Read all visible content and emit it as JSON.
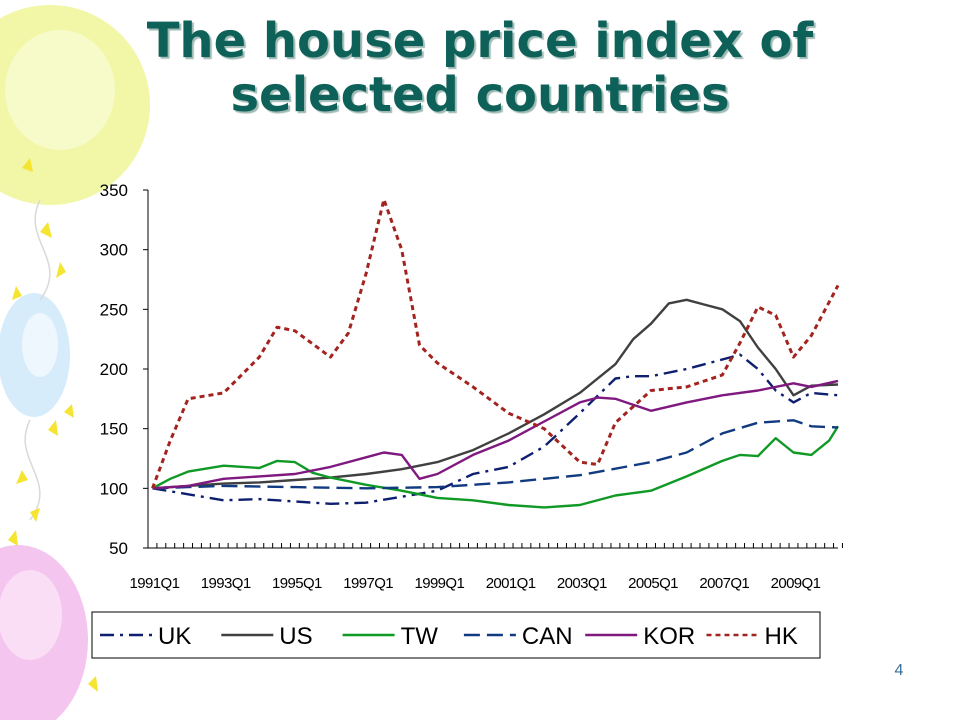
{
  "slide": {
    "title_lines": [
      "The house price index of",
      "selected countries"
    ],
    "page_number": "4",
    "colors": {
      "title": "#0e6158",
      "balloon_yellow": "#f1f7a6",
      "balloon_blue": "#d6ecfb",
      "balloon_pink": "#f4c6ef",
      "confetti": "#f5e430"
    }
  },
  "chart_data": {
    "type": "line",
    "title": "",
    "xlabel": "",
    "ylabel": "",
    "ylim": [
      50,
      350
    ],
    "yticks": [
      50,
      100,
      150,
      200,
      250,
      300,
      350
    ],
    "x_tick_labels": [
      "1991Q1",
      "1993Q1",
      "1995Q1",
      "1997Q1",
      "1999Q1",
      "2001Q1",
      "2003Q1",
      "2005Q1",
      "2007Q1",
      "2009Q1"
    ],
    "x_start": "1991Q1",
    "x_end": "2010Q2",
    "legend_position": "bottom",
    "grid": false,
    "series": [
      {
        "name": "UK",
        "color": "#0d1f6e",
        "dash": "dash-dot",
        "points": [
          [
            "1991Q1",
            100
          ],
          [
            "1992Q1",
            95
          ],
          [
            "1993Q1",
            90
          ],
          [
            "1994Q1",
            91
          ],
          [
            "1995Q1",
            89
          ],
          [
            "1996Q1",
            87
          ],
          [
            "1997Q1",
            88
          ],
          [
            "1998Q1",
            93
          ],
          [
            "1999Q1",
            98
          ],
          [
            "2000Q1",
            112
          ],
          [
            "2001Q1",
            118
          ],
          [
            "2002Q1",
            135
          ],
          [
            "2003Q1",
            163
          ],
          [
            "2004Q1",
            192
          ],
          [
            "2004Q3",
            194
          ],
          [
            "2005Q1",
            194
          ],
          [
            "2006Q1",
            200
          ],
          [
            "2007Q1",
            208
          ],
          [
            "2007Q3",
            212
          ],
          [
            "2008Q1",
            200
          ],
          [
            "2008Q3",
            182
          ],
          [
            "2009Q1",
            172
          ],
          [
            "2009Q3",
            180
          ],
          [
            "2010Q2",
            178
          ]
        ]
      },
      {
        "name": "US",
        "color": "#404040",
        "dash": "solid",
        "points": [
          [
            "1991Q1",
            100
          ],
          [
            "1992Q1",
            102
          ],
          [
            "1993Q1",
            104
          ],
          [
            "1994Q1",
            105
          ],
          [
            "1995Q1",
            107
          ],
          [
            "1996Q1",
            109
          ],
          [
            "1997Q1",
            112
          ],
          [
            "1998Q1",
            116
          ],
          [
            "1999Q1",
            122
          ],
          [
            "2000Q1",
            132
          ],
          [
            "2001Q1",
            146
          ],
          [
            "2002Q1",
            162
          ],
          [
            "2003Q1",
            180
          ],
          [
            "2004Q1",
            204
          ],
          [
            "2004Q3",
            225
          ],
          [
            "2005Q1",
            238
          ],
          [
            "2005Q3",
            255
          ],
          [
            "2006Q1",
            258
          ],
          [
            "2006Q3",
            254
          ],
          [
            "2007Q1",
            250
          ],
          [
            "2007Q3",
            240
          ],
          [
            "2008Q1",
            218
          ],
          [
            "2008Q3",
            200
          ],
          [
            "2009Q1",
            178
          ],
          [
            "2009Q3",
            186
          ],
          [
            "2010Q2",
            187
          ]
        ]
      },
      {
        "name": "TW",
        "color": "#109a25",
        "dash": "solid",
        "points": [
          [
            "1991Q1",
            100
          ],
          [
            "1991Q3",
            108
          ],
          [
            "1992Q1",
            114
          ],
          [
            "1993Q1",
            119
          ],
          [
            "1994Q1",
            117
          ],
          [
            "1994Q3",
            123
          ],
          [
            "1995Q1",
            122
          ],
          [
            "1995Q3",
            113
          ],
          [
            "1996Q1",
            109
          ],
          [
            "1997Q1",
            103
          ],
          [
            "1998Q1",
            98
          ],
          [
            "1999Q1",
            92
          ],
          [
            "2000Q1",
            90
          ],
          [
            "2001Q1",
            86
          ],
          [
            "2002Q1",
            84
          ],
          [
            "2003Q1",
            86
          ],
          [
            "2004Q1",
            94
          ],
          [
            "2005Q1",
            98
          ],
          [
            "2006Q1",
            110
          ],
          [
            "2007Q1",
            123
          ],
          [
            "2007Q3",
            128
          ],
          [
            "2008Q1",
            127
          ],
          [
            "2008Q3",
            142
          ],
          [
            "2009Q1",
            130
          ],
          [
            "2009Q3",
            128
          ],
          [
            "2010Q1",
            140
          ],
          [
            "2010Q2",
            152
          ]
        ]
      },
      {
        "name": "CAN",
        "color": "#123a80",
        "dash": "long-dash",
        "points": [
          [
            "1991Q1",
            100
          ],
          [
            "1993Q1",
            102
          ],
          [
            "1995Q1",
            101
          ],
          [
            "1997Q1",
            100
          ],
          [
            "1999Q1",
            101
          ],
          [
            "2001Q1",
            105
          ],
          [
            "2003Q1",
            111
          ],
          [
            "2005Q1",
            122
          ],
          [
            "2006Q1",
            130
          ],
          [
            "2007Q1",
            146
          ],
          [
            "2008Q1",
            155
          ],
          [
            "2009Q1",
            157
          ],
          [
            "2009Q3",
            152
          ],
          [
            "2010Q2",
            151
          ]
        ]
      },
      {
        "name": "KOR",
        "color": "#7f197f",
        "dash": "solid",
        "points": [
          [
            "1991Q1",
            100
          ],
          [
            "1992Q1",
            102
          ],
          [
            "1993Q1",
            108
          ],
          [
            "1994Q1",
            110
          ],
          [
            "1995Q1",
            112
          ],
          [
            "1996Q1",
            118
          ],
          [
            "1997Q1",
            126
          ],
          [
            "1997Q3",
            130
          ],
          [
            "1998Q1",
            128
          ],
          [
            "1998Q3",
            108
          ],
          [
            "1999Q1",
            112
          ],
          [
            "2000Q1",
            128
          ],
          [
            "2001Q1",
            140
          ],
          [
            "2002Q1",
            156
          ],
          [
            "2003Q1",
            172
          ],
          [
            "2003Q3",
            176
          ],
          [
            "2004Q1",
            175
          ],
          [
            "2005Q1",
            165
          ],
          [
            "2006Q1",
            172
          ],
          [
            "2007Q1",
            178
          ],
          [
            "2008Q1",
            182
          ],
          [
            "2009Q1",
            188
          ],
          [
            "2009Q3",
            185
          ],
          [
            "2010Q2",
            190
          ]
        ]
      },
      {
        "name": "HK",
        "color": "#a3231f",
        "dash": "dotted",
        "points": [
          [
            "1991Q1",
            100
          ],
          [
            "1991Q3",
            140
          ],
          [
            "1992Q1",
            175
          ],
          [
            "1993Q1",
            180
          ],
          [
            "1994Q1",
            210
          ],
          [
            "1994Q3",
            235
          ],
          [
            "1995Q1",
            232
          ],
          [
            "1996Q1",
            210
          ],
          [
            "1996Q3",
            230
          ],
          [
            "1997Q1",
            280
          ],
          [
            "1997Q3",
            342
          ],
          [
            "1998Q1",
            300
          ],
          [
            "1998Q3",
            220
          ],
          [
            "1999Q1",
            205
          ],
          [
            "2000Q1",
            185
          ],
          [
            "2001Q1",
            163
          ],
          [
            "2002Q1",
            150
          ],
          [
            "2003Q1",
            122
          ],
          [
            "2003Q3",
            120
          ],
          [
            "2004Q1",
            155
          ],
          [
            "2005Q1",
            182
          ],
          [
            "2006Q1",
            185
          ],
          [
            "2007Q1",
            195
          ],
          [
            "2007Q3",
            222
          ],
          [
            "2008Q1",
            252
          ],
          [
            "2008Q3",
            245
          ],
          [
            "2009Q1",
            210
          ],
          [
            "2009Q3",
            228
          ],
          [
            "2010Q2",
            270
          ]
        ]
      }
    ]
  }
}
